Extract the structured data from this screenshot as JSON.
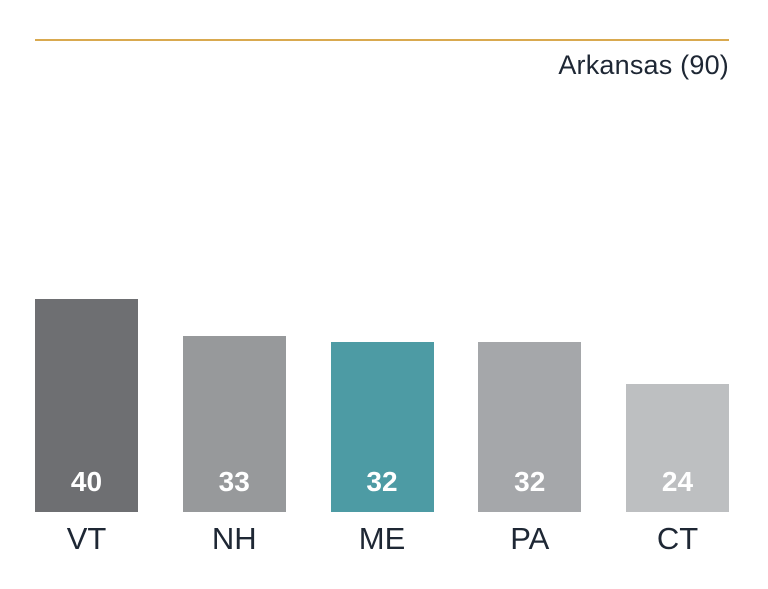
{
  "header": {
    "title": "Arkansas (90)"
  },
  "chart_data": {
    "type": "bar",
    "title": "Arkansas (90)",
    "categories": [
      "VT",
      "NH",
      "ME",
      "PA",
      "CT"
    ],
    "values": [
      40,
      33,
      32,
      32,
      24
    ],
    "xlabel": "",
    "ylabel": "",
    "ylim": [
      0,
      40
    ],
    "grid": false,
    "legend": false,
    "bar_colors": [
      "#6e6f72",
      "#97999b",
      "#4d9ba4",
      "#a5a7aa",
      "#bdbfc1"
    ],
    "highlighted_category": "ME",
    "value_label_color": "#ffffff",
    "accent_line_color": "#d9a94f",
    "text_color": "#1e2734"
  }
}
